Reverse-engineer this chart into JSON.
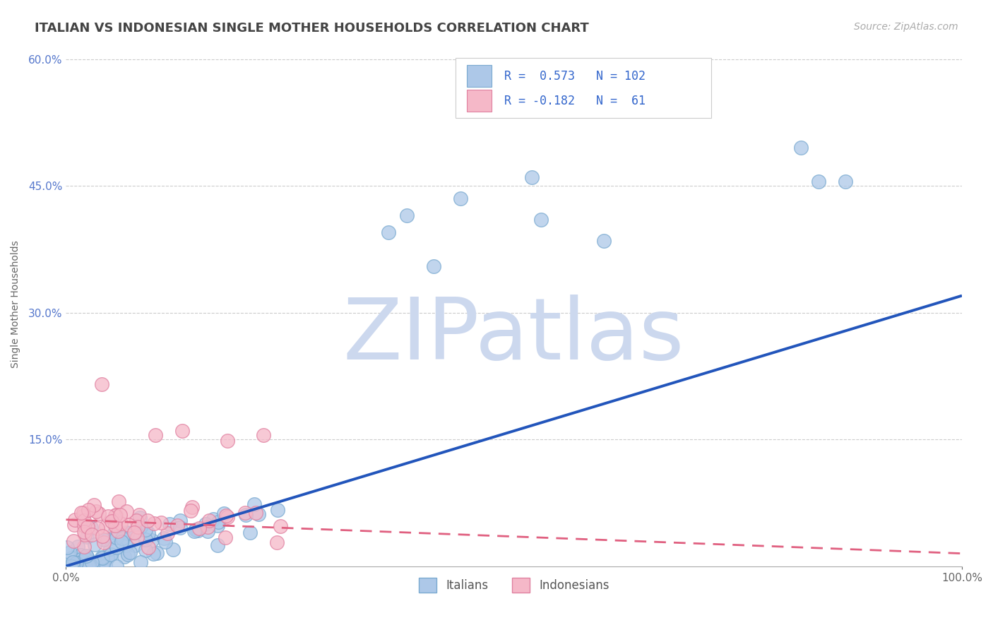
{
  "title": "ITALIAN VS INDONESIAN SINGLE MOTHER HOUSEHOLDS CORRELATION CHART",
  "source_text": "Source: ZipAtlas.com",
  "ylabel": "Single Mother Households",
  "watermark": "ZIPatlas",
  "legend_labels": [
    "Italians",
    "Indonesians"
  ],
  "r_italian": 0.573,
  "n_italian": 102,
  "r_indonesian": -0.182,
  "n_indonesian": 61,
  "italian_color": "#adc8e8",
  "italian_edge_color": "#7aaad0",
  "indonesian_color": "#f5b8c8",
  "indonesian_edge_color": "#e080a0",
  "italian_line_color": "#2255bb",
  "indonesian_line_color": "#e06080",
  "background_color": "#ffffff",
  "grid_color": "#cccccc",
  "title_color": "#444444",
  "legend_r_color": "#3366cc",
  "watermark_color": "#ccd8ee",
  "xlim": [
    0.0,
    1.0
  ],
  "ylim": [
    0.0,
    0.62
  ],
  "ytick_values": [
    0.15,
    0.3,
    0.45,
    0.6
  ],
  "ytick_labels": [
    "15.0%",
    "30.0%",
    "45.0%",
    "60.0%"
  ],
  "it_line_x0": 0.0,
  "it_line_y0": 0.0,
  "it_line_x1": 1.0,
  "it_line_y1": 0.32,
  "ind_line_x0": 0.0,
  "ind_line_y0": 0.055,
  "ind_line_x1": 1.0,
  "ind_line_y1": 0.015
}
